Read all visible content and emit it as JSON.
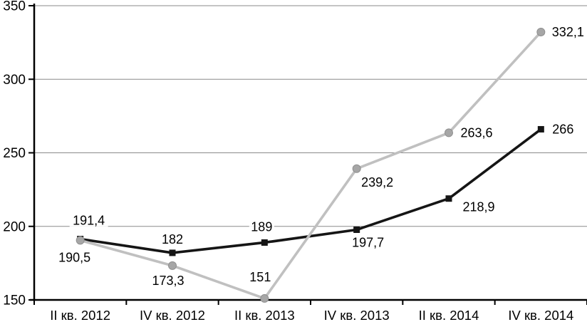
{
  "chart_data": {
    "type": "line",
    "categories": [
      "II кв. 2012",
      "IV кв. 2012",
      "II кв. 2013",
      "IV кв. 2013",
      "II кв. 2014",
      "IV кв. 2014"
    ],
    "series": [
      {
        "name": "squares-series",
        "marker": "square",
        "line_color": "#151515",
        "marker_color": "#151515",
        "values": [
          191.4,
          182,
          189,
          197.7,
          218.9,
          266
        ],
        "labels": [
          "191,4",
          "182",
          "189",
          "197,7",
          "218,9",
          "266"
        ]
      },
      {
        "name": "circles-series",
        "marker": "circle",
        "line_color": "#c0c0c0",
        "marker_color": "#a6a6a6",
        "marker_edge_color": "#8f8f8f",
        "values": [
          190.5,
          173.3,
          151,
          239.2,
          263.6,
          332.1
        ],
        "labels": [
          "190,5",
          "173,3",
          "151",
          "239,2",
          "263,6",
          "332,1"
        ]
      }
    ],
    "ylim": [
      150,
      350
    ],
    "yticks": [
      150,
      200,
      250,
      300,
      350
    ],
    "ytick_labels": [
      "150",
      "200",
      "250",
      "300",
      "350"
    ],
    "xlabel": "",
    "ylabel": "",
    "title": "",
    "legend": "none",
    "grid": "horizontal",
    "axis_color": "#000000",
    "grid_color": "#8a8a8a",
    "label_bg_color": "#ffffff",
    "background": "#ffffff"
  }
}
